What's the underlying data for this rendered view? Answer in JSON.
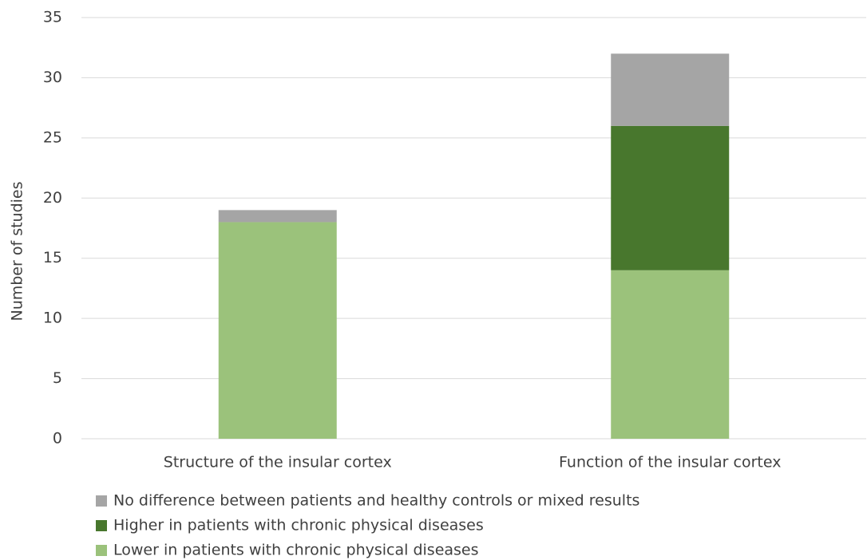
{
  "chart_data": {
    "type": "stacked_bar",
    "y_label": "Number of studies",
    "categories": [
      "Structure of the insular cortex",
      "Function of the insular cortex"
    ],
    "series": [
      {
        "name": "Lower in patients with chronic physical diseases",
        "color": "#9bc27b",
        "values": [
          18,
          14
        ]
      },
      {
        "name": "Higher in patients with chronic physical diseases",
        "color": "#48772d",
        "values": [
          0,
          12
        ]
      },
      {
        "name": "No difference between patients and healthy controls or mixed results",
        "color": "#a5a5a5",
        "values": [
          1,
          6
        ]
      }
    ],
    "ylim": [
      0,
      35
    ],
    "yticks": [
      0,
      5,
      10,
      15,
      20,
      25,
      30,
      35
    ],
    "grid": true
  }
}
